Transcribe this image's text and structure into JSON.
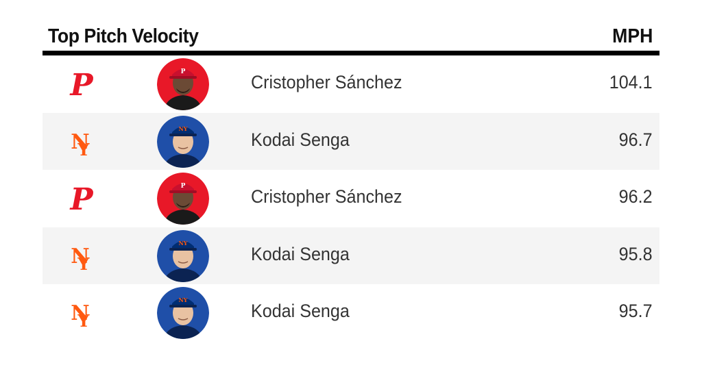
{
  "header": {
    "title": "Top Pitch Velocity",
    "unit": "MPH"
  },
  "colors": {
    "phillies_red": "#E81828",
    "mets_orange": "#FF5910",
    "mets_blue": "#002D72",
    "row_alt": "#f4f4f4"
  },
  "rows": [
    {
      "team_icon": "phillies-p-logo-icon",
      "avatar": "cristopher-sanchez-headshot",
      "name": "Cristopher Sánchez",
      "mph": "104.1"
    },
    {
      "team_icon": "mets-ny-logo-icon",
      "avatar": "kodai-senga-headshot",
      "name": "Kodai Senga",
      "mph": "96.7"
    },
    {
      "team_icon": "phillies-p-logo-icon",
      "avatar": "cristopher-sanchez-headshot",
      "name": "Cristopher Sánchez",
      "mph": "96.2"
    },
    {
      "team_icon": "mets-ny-logo-icon",
      "avatar": "kodai-senga-headshot",
      "name": "Kodai Senga",
      "mph": "95.8"
    },
    {
      "team_icon": "mets-ny-logo-icon",
      "avatar": "kodai-senga-headshot",
      "name": "Kodai Senga",
      "mph": "95.7"
    }
  ]
}
